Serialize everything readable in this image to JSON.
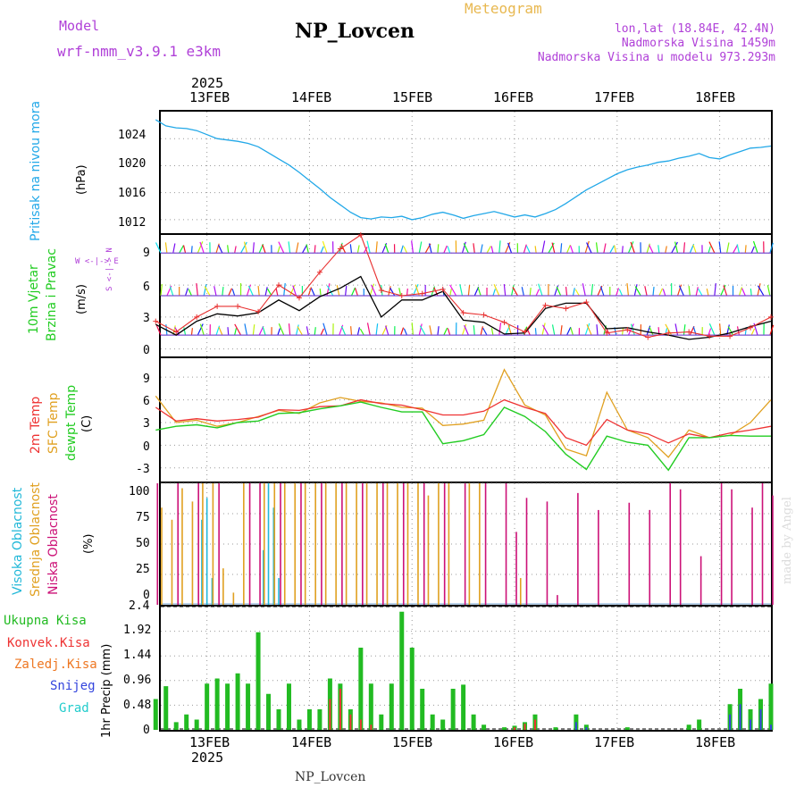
{
  "header": {
    "model_label": "Model",
    "model_name": "wrf-nmm_v3.9.1  e3km",
    "station": "NP_Lovcen",
    "product": "Meteogram",
    "coords": "lon,lat (18.84E, 42.4N)",
    "elevation": "Nadmorska Visina 1459m",
    "model_elevation": "Nadmorska Visina u modelu 973.293m",
    "footer_station": "NP_Lovcen",
    "credit": "made by Angel"
  },
  "time_axis": {
    "year": "2025",
    "dates": [
      "13FEB",
      "14FEB",
      "15FEB",
      "16FEB",
      "17FEB",
      "18FEB"
    ]
  },
  "colors": {
    "pressure": "#22a8e8",
    "wind_speed": "#000000",
    "gust": "#e83030",
    "t2m": "#ee3333",
    "tsfc": "#e0a020",
    "dewpoint": "#22cc22",
    "cloud_high": "#22b8d8",
    "cloud_mid": "#e0a020",
    "cloud_low": "#cc1177",
    "precip_total": "#22bb22",
    "precip_conv": "#ee3333",
    "precip_freezing": "#ee7722",
    "precip_snow": "#3344dd",
    "precip_hail": "#22cccc"
  },
  "chart_data": [
    {
      "type": "line",
      "name": "pressure",
      "ylabel_a": "Pritisak na nivou mora",
      "ylabel_b": "(hPa)",
      "yticks": [
        "1024",
        "1020",
        "1016",
        "1012"
      ],
      "ylim": [
        1010,
        1028
      ],
      "x_days": [
        0,
        0.1,
        0.2,
        0.3,
        0.4,
        0.5,
        0.6,
        0.7,
        0.8,
        0.9,
        1.0,
        1.1,
        1.2,
        1.3,
        1.4,
        1.5,
        1.6,
        1.7,
        1.8,
        1.9,
        2.0,
        2.1,
        2.2,
        2.3,
        2.4,
        2.5,
        2.6,
        2.7,
        2.8,
        2.9,
        3.0,
        3.1,
        3.2,
        3.3,
        3.4,
        3.5,
        3.6,
        3.7,
        3.8,
        3.9,
        4.0,
        4.1,
        4.2,
        4.3,
        4.4,
        4.5,
        4.6,
        4.7,
        4.8,
        4.9,
        5.0,
        5.1,
        5.2,
        5.3,
        5.4,
        5.5,
        5.6,
        5.7,
        5.8,
        5.9,
        6.0
      ],
      "values": [
        1026.8,
        1025.9,
        1025.6,
        1025.5,
        1025.2,
        1024.6,
        1024.0,
        1023.8,
        1023.6,
        1023.3,
        1022.8,
        1021.9,
        1021.0,
        1020.1,
        1019.0,
        1017.8,
        1016.6,
        1015.3,
        1014.2,
        1013.1,
        1012.3,
        1012.1,
        1012.4,
        1012.3,
        1012.5,
        1012.0,
        1012.3,
        1012.8,
        1013.1,
        1012.7,
        1012.2,
        1012.6,
        1012.9,
        1013.2,
        1012.8,
        1012.4,
        1012.7,
        1012.4,
        1012.9,
        1013.5,
        1014.4,
        1015.4,
        1016.4,
        1017.2,
        1018.0,
        1018.8,
        1019.4,
        1019.8,
        1020.1,
        1020.5,
        1020.7,
        1021.1,
        1021.4,
        1021.8,
        1021.2,
        1021.0,
        1021.6,
        1022.1,
        1022.6,
        1022.7,
        1022.9
      ]
    },
    {
      "type": "line",
      "name": "wind",
      "ylabel_a": "10m Vjetar",
      "ylabel_b": "Brzina i Pravac",
      "ylabel_c": "(m/s)",
      "compass": "W <-|-> E",
      "compass_ns": "S <-|-> N",
      "yticks": [
        "9",
        "6",
        "3",
        "0"
      ],
      "ylim": [
        -0.7,
        10.7
      ],
      "x_days": [
        0,
        0.2,
        0.4,
        0.6,
        0.8,
        1.0,
        1.2,
        1.4,
        1.6,
        1.8,
        2.0,
        2.2,
        2.4,
        2.6,
        2.8,
        3.0,
        3.2,
        3.4,
        3.6,
        3.8,
        4.0,
        4.2,
        4.4,
        4.6,
        4.8,
        5.0,
        5.2,
        5.4,
        5.6,
        5.8,
        6.0
      ],
      "speed": [
        2.3,
        1.3,
        2.6,
        3.3,
        3.1,
        3.4,
        4.6,
        3.6,
        4.9,
        5.7,
        6.8,
        3.0,
        4.6,
        4.6,
        5.4,
        2.7,
        2.5,
        1.4,
        1.5,
        3.8,
        4.3,
        4.3,
        1.9,
        2.0,
        1.6,
        1.3,
        0.9,
        1.1,
        1.5,
        2.1,
        2.6
      ],
      "gust": [
        2.6,
        1.6,
        3.0,
        4.0,
        4.0,
        3.5,
        6.0,
        4.8,
        7.2,
        9.4,
        10.7,
        5.5,
        5.0,
        5.2,
        5.6,
        3.4,
        3.2,
        2.5,
        1.6,
        4.1,
        3.8,
        4.4,
        1.5,
        1.8,
        1.1,
        1.5,
        1.6,
        1.2,
        1.2,
        2.0,
        3.0
      ],
      "barb_rows": [
        9,
        5,
        1.3
      ]
    },
    {
      "type": "line",
      "name": "temperature",
      "ylabel_a": "2m Temp",
      "ylabel_b": "SFC Temp",
      "ylabel_c": "dewpt Temp",
      "ylabel_d": "(C)",
      "yticks": [
        "9",
        "6",
        "3",
        "0",
        "-3"
      ],
      "ylim": [
        -4.8,
        11.5
      ],
      "x_days": [
        0,
        0.2,
        0.4,
        0.6,
        0.8,
        1.0,
        1.2,
        1.4,
        1.6,
        1.8,
        2.0,
        2.2,
        2.4,
        2.6,
        2.8,
        3.0,
        3.2,
        3.4,
        3.6,
        3.8,
        4.0,
        4.2,
        4.4,
        4.6,
        4.8,
        5.0,
        5.2,
        5.4,
        5.6,
        5.8,
        6.0
      ],
      "t2m": [
        5.0,
        3.2,
        3.5,
        3.2,
        3.4,
        3.7,
        4.7,
        4.6,
        5.1,
        5.2,
        6.0,
        5.5,
        5.3,
        4.7,
        4.0,
        4.0,
        4.5,
        6.0,
        5.0,
        4.2,
        1.0,
        0.0,
        3.4,
        2.0,
        1.5,
        0.3,
        1.5,
        1.0,
        1.6,
        2.0,
        2.5
      ],
      "tsfc": [
        6.5,
        3.0,
        3.3,
        2.5,
        3.0,
        3.8,
        4.6,
        4.2,
        5.6,
        6.3,
        5.8,
        5.6,
        5.0,
        4.9,
        2.6,
        2.8,
        3.3,
        10.0,
        5.3,
        4.0,
        -0.5,
        -1.4,
        7.0,
        2.0,
        1.0,
        -1.6,
        2.0,
        1.0,
        1.3,
        3.0,
        6.0
      ],
      "dewpoint": [
        2.0,
        2.5,
        2.7,
        2.3,
        3.0,
        3.2,
        4.2,
        4.3,
        4.8,
        5.2,
        5.7,
        5.0,
        4.4,
        4.4,
        0.2,
        0.6,
        1.4,
        5.0,
        3.8,
        1.8,
        -1.2,
        -3.2,
        1.2,
        0.4,
        0.0,
        -3.3,
        1.0,
        1.0,
        1.3,
        1.2,
        1.2
      ]
    },
    {
      "type": "bar",
      "name": "cloud_cover",
      "ylabel_a": "Visoka Oblacnost",
      "ylabel_b": "Srednja Oblacnost",
      "ylabel_c": "Niska Oblacnost",
      "ylabel_d": "(%)",
      "yticks": [
        "100",
        "75",
        "50",
        "25",
        "0"
      ],
      "ylim": [
        0,
        100
      ],
      "series": [
        {
          "name": "Visoka Oblacnost",
          "x_days": [
            0.45,
            0.5,
            0.55,
            1.05,
            1.1,
            1.15,
            1.2
          ],
          "values": [
            70,
            88,
            22,
            45,
            100,
            80,
            22
          ]
        },
        {
          "name": "Srednja Oblacnost",
          "x_days": [
            0.05,
            0.15,
            0.25,
            0.35,
            0.45,
            0.55,
            0.65,
            0.75,
            0.85,
            1.05,
            1.15,
            1.25,
            1.35,
            1.45,
            1.55,
            1.65,
            1.75,
            1.85,
            1.95,
            2.05,
            2.15,
            2.25,
            2.35,
            2.45,
            2.55,
            2.65,
            2.75,
            2.85,
            3.05,
            3.15,
            3.55
          ],
          "values": [
            80,
            70,
            96,
            85,
            100,
            100,
            30,
            10,
            100,
            100,
            100,
            100,
            100,
            100,
            100,
            100,
            100,
            100,
            100,
            100,
            100,
            100,
            100,
            100,
            100,
            90,
            100,
            100,
            100,
            100,
            22
          ]
        },
        {
          "name": "Niska Oblacnost",
          "x_days": [
            0.0,
            0.2,
            0.4,
            0.6,
            0.9,
            1.0,
            1.2,
            1.4,
            1.6,
            1.8,
            2.0,
            2.2,
            2.4,
            2.6,
            2.8,
            3.0,
            3.2,
            3.4,
            3.5,
            3.6,
            3.8,
            3.9,
            4.1,
            4.3,
            4.6,
            4.8,
            5.0,
            5.1,
            5.3,
            5.5,
            5.6,
            5.8,
            5.9,
            6.0
          ],
          "values": [
            100,
            100,
            100,
            100,
            100,
            100,
            100,
            100,
            100,
            100,
            100,
            100,
            100,
            100,
            100,
            100,
            100,
            100,
            60,
            88,
            85,
            8,
            92,
            78,
            84,
            78,
            100,
            95,
            40,
            100,
            95,
            80,
            100,
            90
          ]
        }
      ]
    },
    {
      "type": "bar",
      "name": "precipitation",
      "ylabel_a": "1hr Precip (mm)",
      "yticks": [
        "2.4",
        "1.92",
        "1.44",
        "0.96",
        "0.48",
        "0"
      ],
      "ylim": [
        0,
        2.4
      ],
      "legend": [
        "Ukupna Kisa",
        "Konvek.Kisa",
        "Zaledj.Kisa",
        "Snijeg",
        "Grad"
      ],
      "x_days": [
        0,
        0.1,
        0.2,
        0.3,
        0.4,
        0.5,
        0.6,
        0.7,
        0.8,
        0.9,
        1.0,
        1.1,
        1.2,
        1.3,
        1.4,
        1.5,
        1.6,
        1.7,
        1.8,
        1.9,
        2.0,
        2.1,
        2.2,
        2.3,
        2.4,
        2.5,
        2.6,
        2.7,
        2.8,
        2.9,
        3.0,
        3.1,
        3.2,
        3.3,
        3.4,
        3.5,
        3.6,
        3.7,
        3.8,
        3.9,
        4.0,
        4.1,
        4.2,
        4.3,
        4.4,
        4.5,
        4.6,
        4.7,
        4.8,
        4.9,
        5.0,
        5.1,
        5.2,
        5.3,
        5.4,
        5.5,
        5.6,
        5.7,
        5.8,
        5.9,
        6.0
      ],
      "values": [
        0.6,
        0.85,
        0.15,
        0.3,
        0.2,
        0.9,
        1.0,
        0.9,
        1.1,
        0.9,
        1.9,
        0.7,
        0.4,
        0.9,
        0.2,
        0.4,
        0.4,
        1.0,
        0.9,
        0.4,
        1.6,
        0.9,
        0.3,
        0.9,
        2.3,
        1.6,
        0.8,
        0.3,
        0.2,
        0.8,
        0.88,
        0.3,
        0.1,
        0.0,
        0.05,
        0.08,
        0.15,
        0.3,
        0.0,
        0.05,
        0.0,
        0.3,
        0.1,
        0.0,
        0.0,
        0.0,
        0.05,
        0.0,
        0.0,
        0.0,
        0.0,
        0.0,
        0.1,
        0.2,
        0.0,
        0.0,
        0.5,
        0.8,
        0.4,
        0.6,
        0.9
      ],
      "conv_values": [
        0,
        0,
        0,
        0,
        0,
        0,
        0,
        0,
        0,
        0,
        0,
        0,
        0,
        0,
        0,
        0,
        0,
        0.6,
        0.8,
        0.3,
        0.2,
        0.1,
        0,
        0,
        0,
        0,
        0,
        0,
        0,
        0,
        0,
        0,
        0,
        0,
        0,
        0.05,
        0.12,
        0.2,
        0,
        0,
        0,
        0,
        0,
        0,
        0,
        0,
        0,
        0,
        0,
        0,
        0,
        0,
        0,
        0,
        0,
        0,
        0,
        0,
        0,
        0,
        0
      ],
      "snow_values": [
        0,
        0,
        0,
        0,
        0,
        0,
        0,
        0,
        0,
        0,
        0,
        0,
        0,
        0,
        0,
        0,
        0,
        0,
        0,
        0,
        0,
        0,
        0,
        0,
        0,
        0,
        0,
        0,
        0,
        0,
        0,
        0,
        0,
        0,
        0,
        0,
        0,
        0,
        0,
        0,
        0,
        0.15,
        0.05,
        0,
        0,
        0,
        0,
        0,
        0,
        0,
        0,
        0,
        0,
        0,
        0,
        0,
        0.3,
        0.5,
        0.2,
        0.4,
        0.1
      ]
    }
  ]
}
